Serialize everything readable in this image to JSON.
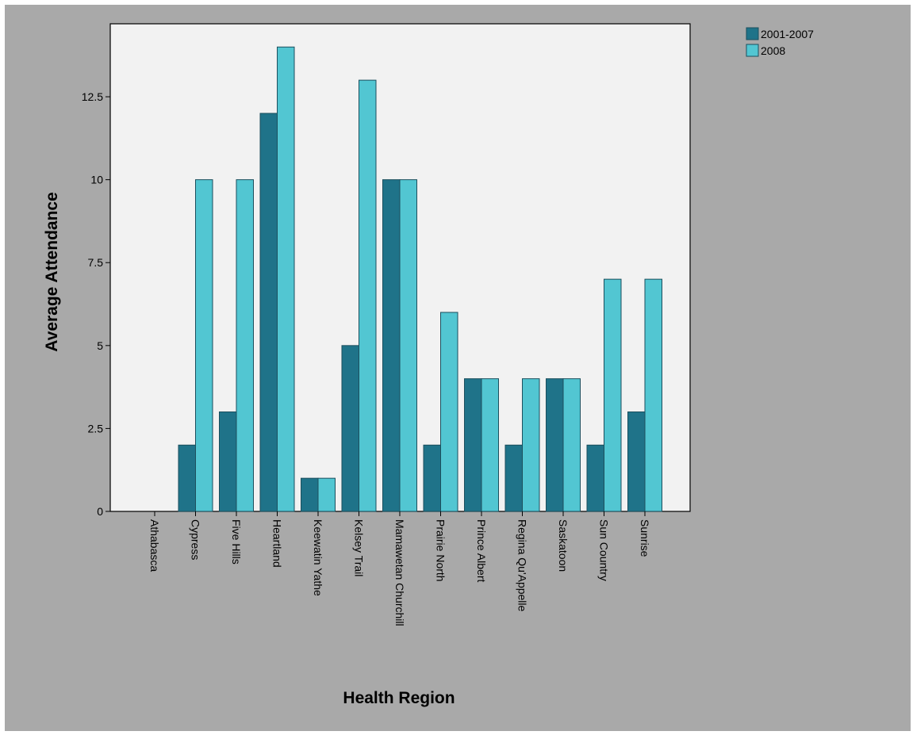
{
  "chart_data": {
    "type": "bar",
    "title": "",
    "xlabel": "Health Region",
    "ylabel": "Average Attendance",
    "categories": [
      "Athabasca",
      "Cypress",
      "Five Hills",
      "Heartland",
      "Keewatin Yathe",
      "Kelsey Trail",
      "Mamawetan Churchill",
      "Prairie North",
      "Prince Albert",
      "Regina Qu'Appelle",
      "Saskatoon",
      "Sun Country",
      "Sunrise"
    ],
    "series": [
      {
        "name": "2001-2007",
        "color": "#1f7389",
        "values": [
          null,
          2,
          3,
          12,
          1,
          5,
          10,
          2,
          4,
          2,
          4,
          2,
          3
        ]
      },
      {
        "name": "2008",
        "color": "#52c6d2",
        "values": [
          null,
          10,
          10,
          14,
          1,
          13,
          10,
          6,
          4,
          4,
          4,
          7,
          7
        ]
      }
    ],
    "yticks": [
      "0",
      "2.5",
      "5",
      "7.5",
      "10",
      "12.5"
    ],
    "ytick_values": [
      0,
      2.5,
      5,
      7.5,
      10,
      12.5
    ],
    "ylim": [
      0,
      14.7
    ],
    "grid": false,
    "legend_position": "top-right, outside plot",
    "plot_background": "#f2f2f2",
    "frame_background": "#a9a9a9"
  }
}
